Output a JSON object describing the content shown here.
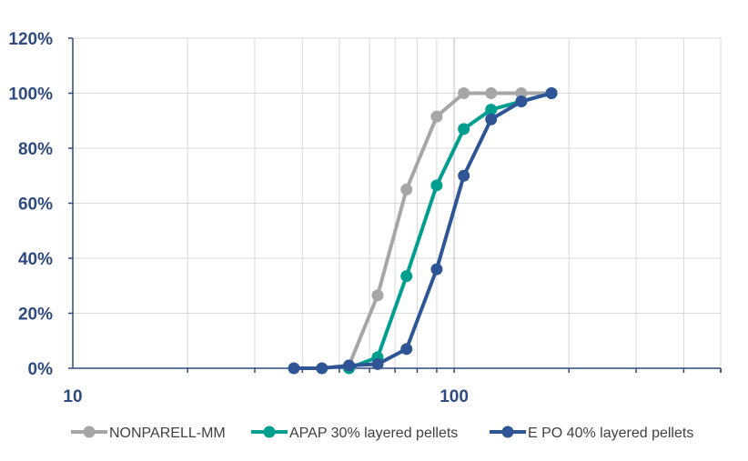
{
  "chart_data": {
    "type": "line",
    "xscale": "log",
    "xlim": [
      10,
      500
    ],
    "ylim": [
      0,
      1.2
    ],
    "x_ticks": [
      {
        "value": 10,
        "label": "10"
      },
      {
        "value": 100,
        "label": "100"
      }
    ],
    "y_ticks": [
      {
        "value": 0,
        "label": "0%"
      },
      {
        "value": 0.2,
        "label": "20%"
      },
      {
        "value": 0.4,
        "label": "40%"
      },
      {
        "value": 0.6,
        "label": "60%"
      },
      {
        "value": 0.8,
        "label": "80%"
      },
      {
        "value": 1.0,
        "label": "100%"
      },
      {
        "value": 1.2,
        "label": "120%"
      }
    ],
    "grid": true,
    "legend": "bottom",
    "series": [
      {
        "name": "NONPARELL-MM",
        "color": "#a6a6a6",
        "x": [
          53,
          63,
          75,
          90,
          106,
          125,
          150,
          180
        ],
        "y": [
          0.01,
          0.265,
          0.65,
          0.915,
          1.0,
          1.0,
          1.0,
          1.0
        ]
      },
      {
        "name": "APAP 30% layered pellets",
        "color": "#009e8f",
        "x": [
          53,
          63,
          75,
          90,
          106,
          125,
          150,
          180
        ],
        "y": [
          0.0,
          0.04,
          0.335,
          0.665,
          0.87,
          0.94,
          0.97,
          1.0
        ]
      },
      {
        "name": "E PO 40% layered pellets",
        "color": "#2f5597",
        "x": [
          38,
          45,
          53,
          63,
          75,
          90,
          106,
          125,
          150,
          180
        ],
        "y": [
          0.0,
          0.0,
          0.01,
          0.015,
          0.07,
          0.36,
          0.7,
          0.905,
          0.97,
          1.0
        ]
      }
    ]
  }
}
